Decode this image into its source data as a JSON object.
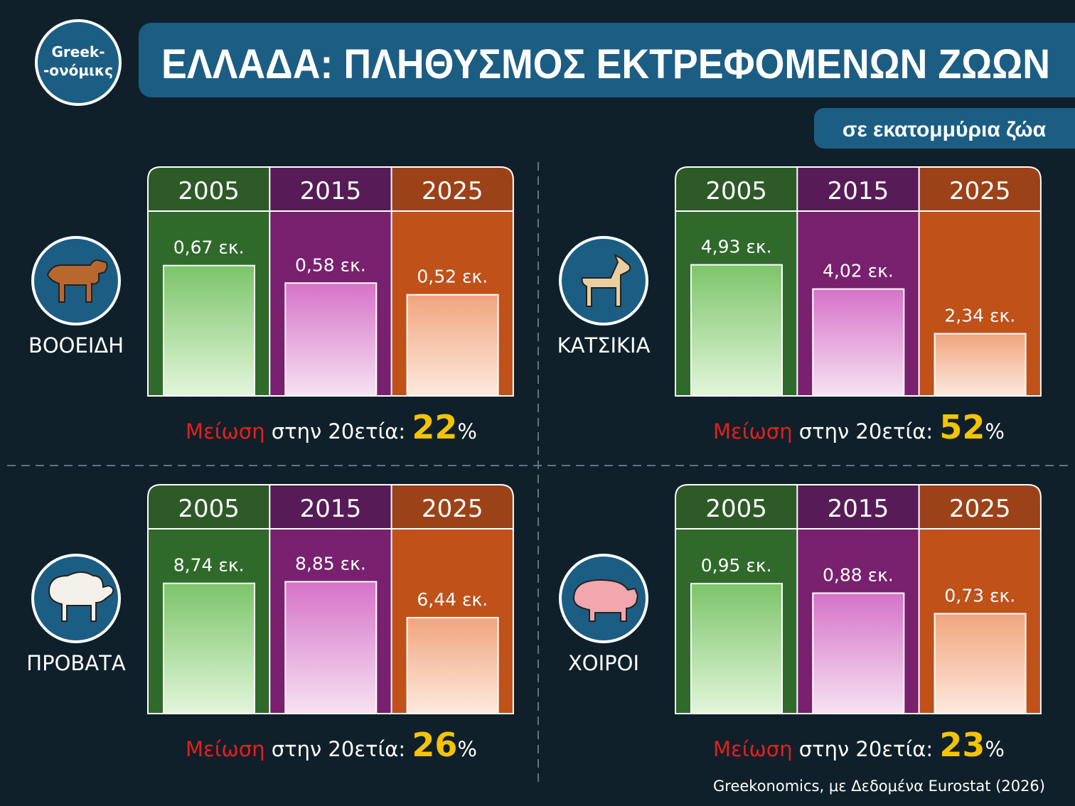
{
  "logo": [
    "Greek-",
    "-ονόμικς"
  ],
  "title": "ΕΛΛΑΔΑ: ΠΛΗΘΥΣΜΟΣ ΕΚΤΡΕΦΟΜΕΝΩΝ ΖΩΩΝ",
  "subtitle": "σε εκατομμύρια ζώα",
  "source": "Greekonomics, με Δεδομένα Eurostat (2026)",
  "style": {
    "header_colors": [
      "#2d5a27",
      "#571c57",
      "#9c4219"
    ],
    "column_colors": [
      "#2f6a2a",
      "#79206f",
      "#bf5119"
    ],
    "bar_colors": [
      [
        "#7cc46a",
        "#e2f6da"
      ],
      [
        "#d672c8",
        "#f6e2f2"
      ],
      [
        "#f0a57e",
        "#fde9de"
      ]
    ]
  },
  "chart_data": [
    {
      "type": "bar",
      "animal": "ΒΟΟΕΙΔΗ",
      "categories": [
        "2005",
        "2015",
        "2025"
      ],
      "values": [
        0.67,
        0.58,
        0.52
      ],
      "value_labels": [
        "0,67 εκ.",
        "0,58 εκ.",
        "0,52 εκ."
      ],
      "ylim": [
        0,
        0.95
      ],
      "reduction": {
        "label": "Μείωση",
        "text": "στην 20ετία:",
        "value": 22,
        "unit": "%"
      }
    },
    {
      "type": "bar",
      "animal": "ΚΑΤΣΙΚΙΑ",
      "categories": [
        "2005",
        "2015",
        "2025"
      ],
      "values": [
        4.93,
        4.02,
        2.34
      ],
      "value_labels": [
        "4,93 εκ.",
        "4,02 εκ.",
        "2,34 εκ."
      ],
      "ylim": [
        0,
        6.95
      ],
      "reduction": {
        "label": "Μείωση",
        "text": "στην 20ετία:",
        "value": 52,
        "unit": "%"
      }
    },
    {
      "type": "bar",
      "animal": "ΠΡΟΒΑΤΑ",
      "categories": [
        "2005",
        "2015",
        "2025"
      ],
      "values": [
        8.74,
        8.85,
        6.44
      ],
      "value_labels": [
        "8,74 εκ.",
        "8,85 εκ.",
        "6,44 εκ."
      ],
      "ylim": [
        0,
        12.4
      ],
      "reduction": {
        "label": "Μείωση",
        "text": "στην 20ετία:",
        "value": 26,
        "unit": "%"
      }
    },
    {
      "type": "bar",
      "animal": "ΧΟΙΡΟΙ",
      "categories": [
        "2005",
        "2015",
        "2025"
      ],
      "values": [
        0.95,
        0.88,
        0.73
      ],
      "value_labels": [
        "0,95 εκ.",
        "0,88 εκ.",
        "0,73 εκ."
      ],
      "ylim": [
        0,
        1.35
      ],
      "reduction": {
        "label": "Μείωση",
        "text": "στην 20ετία:",
        "value": 23,
        "unit": "%"
      }
    }
  ]
}
